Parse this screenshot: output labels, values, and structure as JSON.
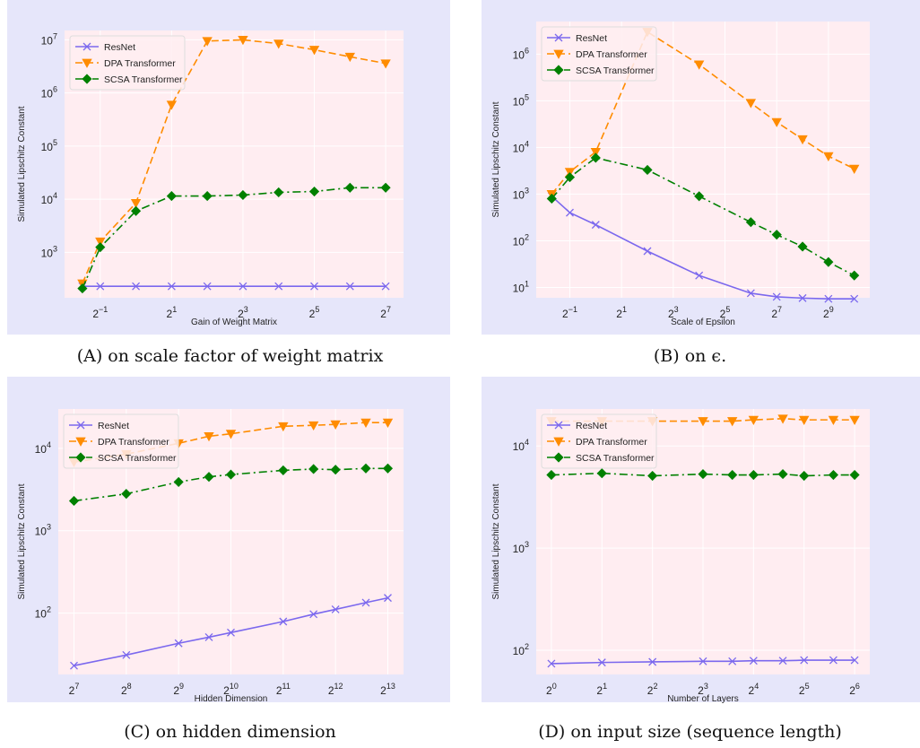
{
  "chart_data": [
    {
      "type": "line",
      "title": "",
      "xlabel": "Gain of Weight Matrix",
      "ylabel": "Simulated Lipschitz Constant",
      "x_scale": "log2",
      "y_scale": "log10",
      "xlim": [
        -2.0,
        7.5
      ],
      "ylim": [
        140,
        15000000
      ],
      "x_ticks": [
        {
          "value": -1,
          "base": "2",
          "exp": "−1"
        },
        {
          "value": 1,
          "base": "2",
          "exp": "1"
        },
        {
          "value": 3,
          "base": "2",
          "exp": "3"
        },
        {
          "value": 5,
          "base": "2",
          "exp": "5"
        },
        {
          "value": 7,
          "base": "2",
          "exp": "7"
        }
      ],
      "y_ticks": [
        {
          "value": 1000,
          "base": "10",
          "exp": "3"
        },
        {
          "value": 10000,
          "base": "10",
          "exp": "4"
        },
        {
          "value": 100000,
          "base": "10",
          "exp": "5"
        },
        {
          "value": 1000000,
          "base": "10",
          "exp": "6"
        },
        {
          "value": 10000000,
          "base": "10",
          "exp": "7"
        }
      ],
      "legend_position": "top-left",
      "grid": true,
      "x": [
        -1.5,
        -1,
        0,
        1,
        2,
        3,
        4,
        5,
        6,
        7
      ],
      "series": [
        {
          "name": "ResNet",
          "color": "#7b68ee",
          "marker": "x",
          "dash": "solid",
          "values": [
            230,
            230,
            230,
            230,
            230,
            230,
            230,
            230,
            230,
            230
          ]
        },
        {
          "name": "DPA Transformer",
          "color": "#ff8c00",
          "marker": "triangle-down",
          "dash": "dashed",
          "values": [
            260,
            1600,
            8500,
            600000,
            9500000,
            10000000,
            8500000,
            6500000,
            4800000,
            3600000
          ]
        },
        {
          "name": "SCSA Transformer",
          "color": "#008000",
          "marker": "diamond",
          "dash": "dashdot",
          "values": [
            210,
            1250,
            6000,
            11500,
            11500,
            12000,
            13500,
            14000,
            16500,
            16500
          ]
        }
      ]
    },
    {
      "type": "line",
      "title": "",
      "xlabel": "Scale of Epsilon",
      "ylabel": "Simulated Lipschitz Constant",
      "x_scale": "log2",
      "y_scale": "log10",
      "xlim": [
        -2.3,
        10.6
      ],
      "ylim": [
        6,
        5000000
      ],
      "x_ticks": [
        {
          "value": -1,
          "base": "2",
          "exp": "−1"
        },
        {
          "value": 1,
          "base": "2",
          "exp": "1"
        },
        {
          "value": 3,
          "base": "2",
          "exp": "3"
        },
        {
          "value": 5,
          "base": "2",
          "exp": "5"
        },
        {
          "value": 7,
          "base": "2",
          "exp": "7"
        },
        {
          "value": 9,
          "base": "2",
          "exp": "9"
        }
      ],
      "y_ticks": [
        {
          "value": 10,
          "base": "10",
          "exp": "1"
        },
        {
          "value": 100,
          "base": "10",
          "exp": "2"
        },
        {
          "value": 1000,
          "base": "10",
          "exp": "3"
        },
        {
          "value": 10000,
          "base": "10",
          "exp": "4"
        },
        {
          "value": 100000,
          "base": "10",
          "exp": "5"
        },
        {
          "value": 1000000,
          "base": "10",
          "exp": "6"
        }
      ],
      "legend_position": "top-left",
      "grid": true,
      "x": [
        -1.7,
        -1,
        0,
        2,
        4,
        6,
        7,
        8,
        9,
        10
      ],
      "series": [
        {
          "name": "ResNet",
          "color": "#7b68ee",
          "marker": "x",
          "dash": "solid",
          "values": [
            900,
            400,
            220,
            60,
            18,
            7.5,
            6.3,
            5.9,
            5.7,
            5.7
          ]
        },
        {
          "name": "DPA Transformer",
          "color": "#ff8c00",
          "marker": "triangle-down",
          "dash": "dashed",
          "values": [
            1000,
            3000,
            8000,
            3000000,
            600000,
            90000,
            35000,
            15000,
            6500,
            3500
          ]
        },
        {
          "name": "SCSA Transformer",
          "color": "#008000",
          "marker": "diamond",
          "dash": "dashdot",
          "values": [
            800,
            2300,
            6000,
            3300,
            900,
            250,
            135,
            75,
            35,
            18
          ]
        }
      ]
    },
    {
      "type": "line",
      "title": "",
      "xlabel": "Hidden Dimension",
      "ylabel": "Simulated Lipschitz Constant",
      "x_scale": "log2",
      "y_scale": "log10",
      "xlim": [
        6.7,
        13.3
      ],
      "ylim": [
        18,
        30000
      ],
      "x_ticks": [
        {
          "value": 7,
          "base": "2",
          "exp": "7"
        },
        {
          "value": 8,
          "base": "2",
          "exp": "8"
        },
        {
          "value": 9,
          "base": "2",
          "exp": "9"
        },
        {
          "value": 10,
          "base": "2",
          "exp": "10"
        },
        {
          "value": 11,
          "base": "2",
          "exp": "11"
        },
        {
          "value": 12,
          "base": "2",
          "exp": "12"
        },
        {
          "value": 13,
          "base": "2",
          "exp": "13"
        }
      ],
      "y_ticks": [
        {
          "value": 100,
          "base": "10",
          "exp": "2"
        },
        {
          "value": 1000,
          "base": "10",
          "exp": "3"
        },
        {
          "value": 10000,
          "base": "10",
          "exp": "4"
        }
      ],
      "legend_position": "top-left",
      "grid": true,
      "x": [
        7,
        8,
        9,
        9.58,
        10,
        11,
        11.58,
        12,
        12.58,
        13
      ],
      "series": [
        {
          "name": "ResNet",
          "color": "#7b68ee",
          "marker": "x",
          "dash": "solid",
          "values": [
            23,
            31,
            43,
            51,
            58,
            79,
            97,
            111,
            134,
            153
          ]
        },
        {
          "name": "DPA Transformer",
          "color": "#ff8c00",
          "marker": "triangle-down",
          "dash": "dashed",
          "values": [
            6800,
            8500,
            11500,
            14000,
            15000,
            18500,
            19000,
            19500,
            20500,
            20500
          ]
        },
        {
          "name": "SCSA Transformer",
          "color": "#008000",
          "marker": "diamond",
          "dash": "dashdot",
          "values": [
            2300,
            2800,
            3900,
            4500,
            4800,
            5400,
            5600,
            5500,
            5700,
            5700
          ]
        }
      ]
    },
    {
      "type": "line",
      "title": "",
      "xlabel": "Number of Layers",
      "ylabel": "Simulated Lipschitz Constant",
      "x_scale": "log2",
      "y_scale": "log10",
      "xlim": [
        -0.3,
        6.3
      ],
      "ylim": [
        58,
        23000
      ],
      "x_ticks": [
        {
          "value": 0,
          "base": "2",
          "exp": "0"
        },
        {
          "value": 1,
          "base": "2",
          "exp": "1"
        },
        {
          "value": 2,
          "base": "2",
          "exp": "2"
        },
        {
          "value": 3,
          "base": "2",
          "exp": "3"
        },
        {
          "value": 4,
          "base": "2",
          "exp": "4"
        },
        {
          "value": 5,
          "base": "2",
          "exp": "5"
        },
        {
          "value": 6,
          "base": "2",
          "exp": "6"
        }
      ],
      "y_ticks": [
        {
          "value": 100,
          "base": "10",
          "exp": "2"
        },
        {
          "value": 1000,
          "base": "10",
          "exp": "3"
        },
        {
          "value": 10000,
          "base": "10",
          "exp": "4"
        }
      ],
      "legend_position": "top-left",
      "grid": true,
      "x": [
        0,
        1,
        2,
        3,
        3.58,
        4,
        4.58,
        5,
        5.58,
        6
      ],
      "series": [
        {
          "name": "ResNet",
          "color": "#7b68ee",
          "marker": "x",
          "dash": "solid",
          "values": [
            74,
            76,
            77,
            78,
            78,
            79,
            79,
            80,
            80,
            80
          ]
        },
        {
          "name": "DPA Transformer",
          "color": "#ff8c00",
          "marker": "triangle-down",
          "dash": "dashed",
          "values": [
            17500,
            17500,
            17500,
            17500,
            17500,
            18000,
            18500,
            18000,
            18000,
            18000
          ]
        },
        {
          "name": "SCSA Transformer",
          "color": "#008000",
          "marker": "diamond",
          "dash": "dashdot",
          "values": [
            5200,
            5400,
            5100,
            5300,
            5200,
            5200,
            5300,
            5100,
            5200,
            5200
          ]
        }
      ]
    }
  ],
  "captions": [
    {
      "tag": "(A)",
      "text": " on scale factor of weight matrix"
    },
    {
      "tag": "(B)",
      "text": " on ϵ."
    },
    {
      "tag": "(C)",
      "text": " on hidden dimension"
    },
    {
      "tag": "(D)",
      "text": " on input size (sequence length)"
    }
  ]
}
